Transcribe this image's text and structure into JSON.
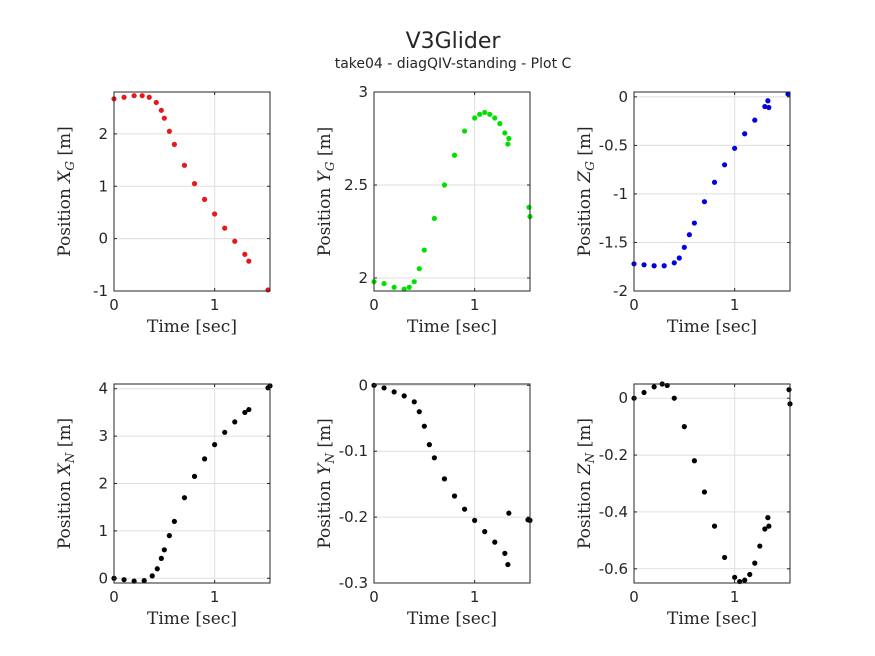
{
  "figure": {
    "title": "V3Glider",
    "subtitle": "take04 - diagQIV-standing - Plot C"
  },
  "chart_data": [
    {
      "type": "scatter",
      "panel": "top-left",
      "xlabel": "Time [sec]",
      "ylabel": {
        "prefix": "Position ",
        "var": "X",
        "sub": "G",
        "suffix": " [m]"
      },
      "xlim": [
        0,
        1.55
      ],
      "ylim": [
        -1,
        2.8
      ],
      "xticks": [
        0,
        1
      ],
      "yticks": [
        -1,
        0,
        1,
        2
      ],
      "grid": true,
      "color": "#e31a1c",
      "x": [
        0,
        0.1,
        0.2,
        0.28,
        0.35,
        0.42,
        0.47,
        0.5,
        0.55,
        0.6,
        0.7,
        0.8,
        0.9,
        1.0,
        1.1,
        1.2,
        1.3,
        1.34,
        1.53
      ],
      "y": [
        2.67,
        2.7,
        2.73,
        2.73,
        2.7,
        2.6,
        2.45,
        2.3,
        2.05,
        1.8,
        1.4,
        1.05,
        0.75,
        0.47,
        0.2,
        -0.05,
        -0.3,
        -0.43,
        -0.98
      ]
    },
    {
      "type": "scatter",
      "panel": "top-center",
      "xlabel": "Time [sec]",
      "ylabel": {
        "prefix": "Position ",
        "var": "Y",
        "sub": "G",
        "suffix": " [m]"
      },
      "xlim": [
        0,
        1.55
      ],
      "ylim": [
        1.93,
        3.0
      ],
      "xticks": [
        0,
        1
      ],
      "yticks": [
        2,
        2.5,
        3
      ],
      "grid": true,
      "color": "#00e000",
      "x": [
        0,
        0.1,
        0.2,
        0.3,
        0.35,
        0.4,
        0.45,
        0.5,
        0.6,
        0.7,
        0.8,
        0.9,
        1.0,
        1.05,
        1.1,
        1.15,
        1.2,
        1.25,
        1.3,
        1.33,
        1.34,
        1.54,
        1.55
      ],
      "y": [
        1.98,
        1.97,
        1.95,
        1.94,
        1.95,
        1.98,
        2.05,
        2.15,
        2.32,
        2.5,
        2.66,
        2.79,
        2.86,
        2.88,
        2.89,
        2.88,
        2.86,
        2.83,
        2.78,
        2.72,
        2.75,
        2.38,
        2.33
      ]
    },
    {
      "type": "scatter",
      "panel": "top-right",
      "xlabel": "Time [sec]",
      "ylabel": {
        "prefix": "Position ",
        "var": "Z",
        "sub": "G",
        "suffix": " [m]"
      },
      "xlim": [
        0,
        1.55
      ],
      "ylim": [
        -2,
        0.05
      ],
      "xticks": [
        0,
        1
      ],
      "yticks": [
        -2,
        -1.5,
        -1,
        -0.5,
        0
      ],
      "grid": true,
      "color": "#0000e0",
      "x": [
        0,
        0.1,
        0.2,
        0.3,
        0.4,
        0.45,
        0.5,
        0.55,
        0.6,
        0.7,
        0.8,
        0.9,
        1.0,
        1.1,
        1.2,
        1.3,
        1.33,
        1.34,
        1.53
      ],
      "y": [
        -1.72,
        -1.73,
        -1.74,
        -1.74,
        -1.71,
        -1.66,
        -1.55,
        -1.42,
        -1.3,
        -1.08,
        -0.88,
        -0.7,
        -0.53,
        -0.38,
        -0.24,
        -0.1,
        -0.04,
        -0.11,
        0.03
      ]
    },
    {
      "type": "scatter",
      "panel": "bottom-left",
      "xlabel": "Time [sec]",
      "ylabel": {
        "prefix": "Position ",
        "var": "X",
        "sub": "N",
        "suffix": " [m]"
      },
      "xlim": [
        0,
        1.55
      ],
      "ylim": [
        -0.1,
        4.1
      ],
      "xticks": [
        0,
        1
      ],
      "yticks": [
        0,
        1,
        2,
        3,
        4
      ],
      "grid": true,
      "color": "#000000",
      "x": [
        0,
        0.1,
        0.2,
        0.3,
        0.38,
        0.43,
        0.47,
        0.5,
        0.55,
        0.6,
        0.7,
        0.8,
        0.9,
        1.0,
        1.1,
        1.2,
        1.3,
        1.34,
        1.53,
        1.55
      ],
      "y": [
        0.0,
        -0.03,
        -0.06,
        -0.05,
        0.05,
        0.2,
        0.42,
        0.6,
        0.9,
        1.2,
        1.7,
        2.15,
        2.52,
        2.82,
        3.08,
        3.3,
        3.5,
        3.56,
        4.02,
        4.06
      ]
    },
    {
      "type": "scatter",
      "panel": "bottom-center",
      "xlabel": "Time [sec]",
      "ylabel": {
        "prefix": "Position ",
        "var": "Y",
        "sub": "N",
        "suffix": " [m]"
      },
      "xlim": [
        0,
        1.55
      ],
      "ylim": [
        -0.3,
        0.002
      ],
      "xticks": [
        0,
        1
      ],
      "yticks": [
        -0.3,
        -0.2,
        -0.1,
        0
      ],
      "grid": true,
      "color": "#000000",
      "x": [
        0,
        0.1,
        0.2,
        0.3,
        0.4,
        0.45,
        0.5,
        0.55,
        0.6,
        0.7,
        0.8,
        0.9,
        1.0,
        1.1,
        1.2,
        1.3,
        1.33,
        1.34,
        1.53,
        1.55
      ],
      "y": [
        0.0,
        -0.004,
        -0.01,
        -0.016,
        -0.025,
        -0.04,
        -0.062,
        -0.09,
        -0.11,
        -0.142,
        -0.168,
        -0.188,
        -0.205,
        -0.222,
        -0.238,
        -0.255,
        -0.272,
        -0.194,
        -0.204,
        -0.205
      ]
    },
    {
      "type": "scatter",
      "panel": "bottom-right",
      "xlabel": "Time [sec]",
      "ylabel": {
        "prefix": "Position ",
        "var": "Z",
        "sub": "N",
        "suffix": " [m]"
      },
      "xlim": [
        0,
        1.55
      ],
      "ylim": [
        -0.65,
        0.05
      ],
      "xticks": [
        0,
        1
      ],
      "yticks": [
        -0.6,
        -0.4,
        -0.2,
        0
      ],
      "grid": true,
      "color": "#000000",
      "x": [
        0,
        0.1,
        0.2,
        0.28,
        0.33,
        0.4,
        0.5,
        0.6,
        0.7,
        0.8,
        0.9,
        1.0,
        1.05,
        1.1,
        1.15,
        1.2,
        1.25,
        1.3,
        1.33,
        1.34,
        1.54,
        1.55
      ],
      "y": [
        0.0,
        0.02,
        0.04,
        0.05,
        0.045,
        0.0,
        -0.1,
        -0.22,
        -0.33,
        -0.45,
        -0.56,
        -0.63,
        -0.645,
        -0.64,
        -0.62,
        -0.58,
        -0.52,
        -0.46,
        -0.42,
        -0.45,
        0.03,
        -0.02
      ]
    }
  ]
}
